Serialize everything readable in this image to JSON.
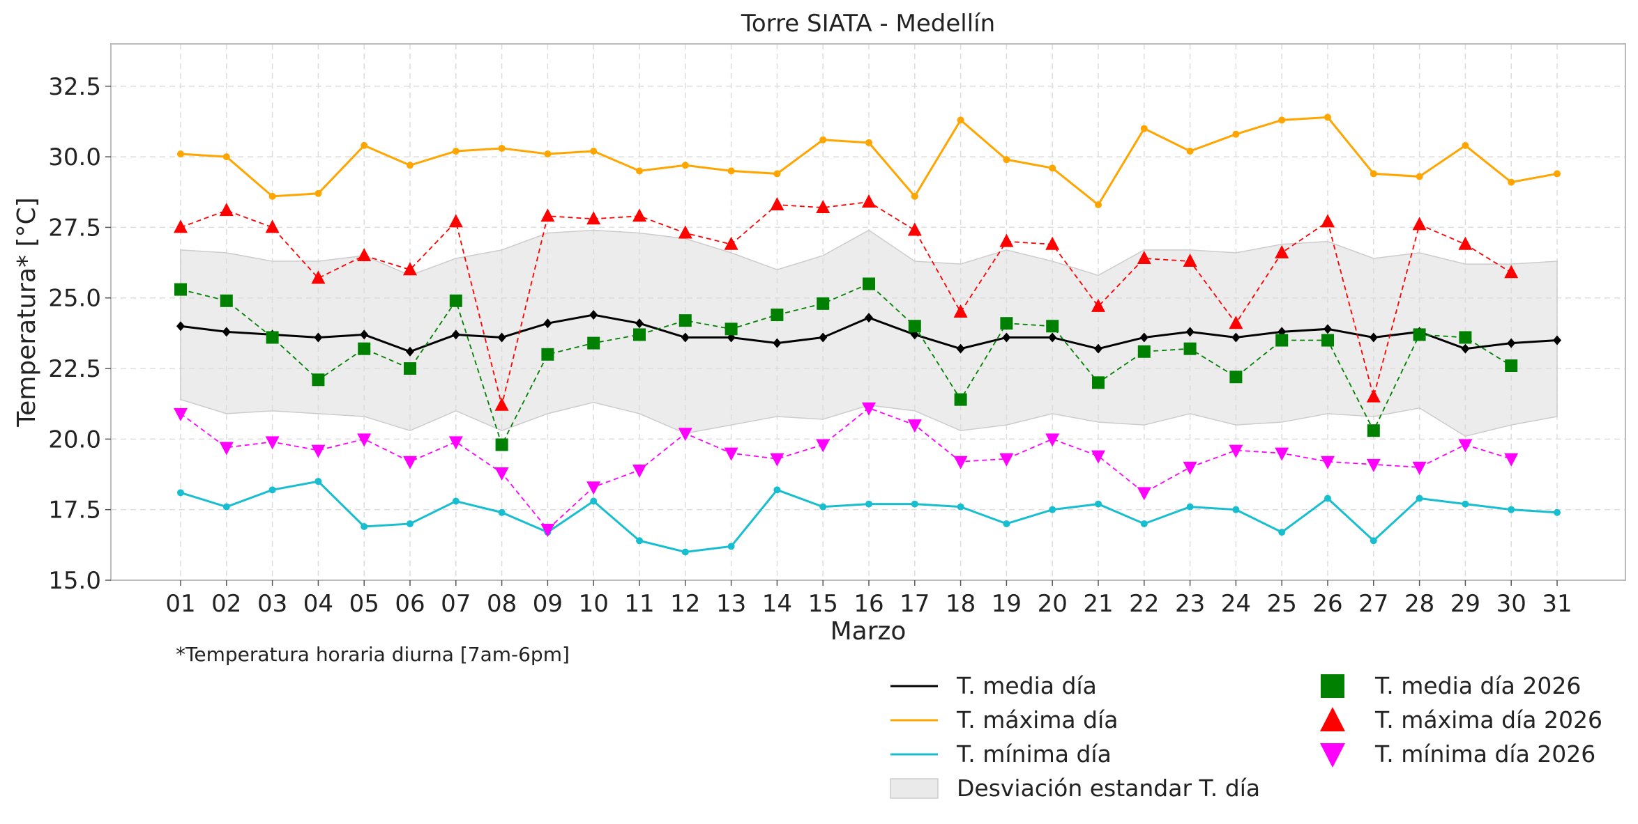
{
  "chart_data": {
    "type": "line",
    "title": "Torre SIATA - Medellín",
    "xlabel": "Marzo",
    "ylabel": "Temperatura* [°C]",
    "footnote": "*Temperatura horaria diurna [7am-6pm]",
    "categories": [
      "01",
      "02",
      "03",
      "04",
      "05",
      "06",
      "07",
      "08",
      "09",
      "10",
      "11",
      "12",
      "13",
      "14",
      "15",
      "16",
      "17",
      "18",
      "19",
      "20",
      "21",
      "22",
      "23",
      "24",
      "25",
      "26",
      "27",
      "28",
      "29",
      "30",
      "31"
    ],
    "ylim": [
      15.0,
      34.0
    ],
    "yticks": [
      15.0,
      17.5,
      20.0,
      22.5,
      25.0,
      27.5,
      30.0,
      32.5
    ],
    "ytick_labels": [
      "15.0",
      "17.5",
      "20.0",
      "22.5",
      "25.0",
      "27.5",
      "30.0",
      "32.5"
    ],
    "grid": true,
    "legend_position": "bottom-right, outside plot",
    "std_band": {
      "name": "Desviación estandar T. día",
      "color": "#d9d9d9",
      "upper": [
        26.7,
        26.6,
        26.3,
        26.3,
        26.5,
        25.8,
        26.4,
        26.7,
        27.3,
        27.4,
        27.3,
        27.1,
        26.6,
        26.0,
        26.5,
        27.4,
        26.3,
        26.2,
        26.7,
        26.3,
        25.8,
        26.7,
        26.7,
        26.6,
        26.9,
        27.0,
        26.4,
        26.6,
        26.2,
        26.2,
        26.3
      ],
      "lower": [
        21.4,
        20.9,
        21.0,
        20.9,
        20.8,
        20.3,
        21.0,
        20.3,
        20.9,
        21.3,
        20.9,
        20.2,
        20.5,
        20.8,
        20.7,
        21.2,
        21.0,
        20.3,
        20.5,
        20.9,
        20.6,
        20.5,
        20.9,
        20.5,
        20.6,
        20.9,
        20.8,
        21.1,
        20.1,
        20.5,
        20.8
      ]
    },
    "series": [
      {
        "name": "T. media día",
        "color": "#000000",
        "style": "solid",
        "marker": "diamond",
        "values": [
          24.0,
          23.8,
          23.7,
          23.6,
          23.7,
          23.1,
          23.7,
          23.6,
          24.1,
          24.4,
          24.1,
          23.6,
          23.6,
          23.4,
          23.6,
          24.3,
          23.7,
          23.2,
          23.6,
          23.6,
          23.2,
          23.6,
          23.8,
          23.6,
          23.8,
          23.9,
          23.6,
          23.8,
          23.2,
          23.4,
          23.5
        ]
      },
      {
        "name": "T. máxima día",
        "color": "#ffa500",
        "style": "solid",
        "marker": "circle",
        "values": [
          30.1,
          30.0,
          28.6,
          28.7,
          30.4,
          29.7,
          30.2,
          30.3,
          30.1,
          30.2,
          29.5,
          29.7,
          29.5,
          29.4,
          30.6,
          30.5,
          28.6,
          31.3,
          29.9,
          29.6,
          28.3,
          31.0,
          30.2,
          30.8,
          31.3,
          31.4,
          29.4,
          29.3,
          30.4,
          29.1,
          29.4
        ]
      },
      {
        "name": "T. mínima día",
        "color": "#17becf",
        "style": "solid",
        "marker": "circle",
        "values": [
          18.1,
          17.6,
          18.2,
          18.5,
          16.9,
          17.0,
          17.8,
          17.4,
          16.7,
          17.8,
          16.4,
          16.0,
          16.2,
          18.2,
          17.6,
          17.7,
          17.7,
          17.6,
          17.0,
          17.5,
          17.7,
          17.0,
          17.6,
          17.5,
          16.7,
          17.9,
          16.4,
          17.9,
          17.7,
          17.5,
          17.4
        ]
      },
      {
        "name": "T. media día 2026",
        "color": "#008000",
        "style": "dashed",
        "marker": "square",
        "values": [
          25.3,
          24.9,
          23.6,
          22.1,
          23.2,
          22.5,
          24.9,
          19.8,
          23.0,
          23.4,
          23.7,
          24.2,
          23.9,
          24.4,
          24.8,
          25.5,
          24.0,
          21.4,
          24.1,
          24.0,
          22.0,
          23.1,
          23.2,
          22.2,
          23.5,
          23.5,
          20.3,
          23.7,
          23.6,
          22.6,
          null
        ]
      },
      {
        "name": "T. máxima día 2026",
        "color": "#ff0000",
        "style": "dashed",
        "marker": "triangle-up",
        "values": [
          27.5,
          28.1,
          27.5,
          25.7,
          26.5,
          26.0,
          27.7,
          21.2,
          27.9,
          27.8,
          27.9,
          27.3,
          26.9,
          28.3,
          28.2,
          28.4,
          27.4,
          24.5,
          27.0,
          26.9,
          24.7,
          26.4,
          26.3,
          24.1,
          26.6,
          27.7,
          21.5,
          27.6,
          26.9,
          25.9,
          null
        ]
      },
      {
        "name": "T. mínima día 2026",
        "color": "#ff00ff",
        "style": "dashed",
        "marker": "triangle-down",
        "values": [
          20.9,
          19.7,
          19.9,
          19.6,
          20.0,
          19.2,
          19.9,
          18.8,
          16.8,
          18.3,
          18.9,
          20.2,
          19.5,
          19.3,
          19.8,
          21.1,
          20.5,
          19.2,
          19.3,
          20.0,
          19.4,
          18.1,
          19.0,
          19.6,
          19.5,
          19.2,
          19.1,
          19.0,
          19.8,
          19.3,
          null
        ]
      }
    ]
  }
}
